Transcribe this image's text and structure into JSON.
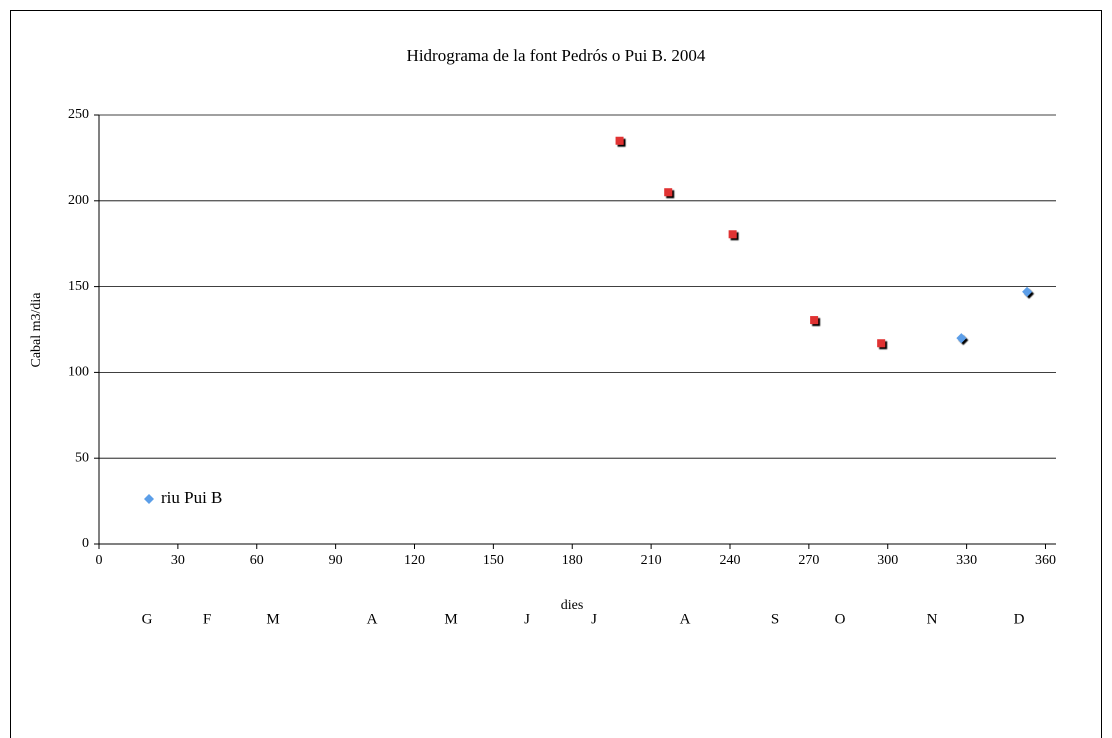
{
  "chart_data": {
    "type": "scatter",
    "title": "Hidrograma de la font Pedrós o Pui B. 2004",
    "x_label": "dies",
    "y_label": "Cabal m3/dia",
    "month_labels": [
      "G",
      "F",
      "M",
      "A",
      "M",
      "J",
      "J",
      "A",
      "S",
      "O",
      "N",
      "D"
    ],
    "series": [
      {
        "color": "#e03030",
        "marker": "square",
        "x": [
          198,
          216.5,
          241,
          272,
          297.5
        ],
        "values": [
          235,
          205,
          180.5,
          130.5,
          117
        ]
      },
      {
        "name": "riu Pui B",
        "color": "#5b9ee8",
        "marker": "diamond",
        "x": [
          328,
          353
        ],
        "values": [
          120,
          147
        ]
      }
    ],
    "xlim": [
      0,
      364
    ],
    "xticks": [
      0,
      30,
      60,
      90,
      120,
      150,
      180,
      210,
      240,
      270,
      300,
      330,
      360
    ],
    "ylim": [
      0,
      250
    ],
    "yticks": [
      0,
      50,
      100,
      150,
      200,
      250
    ],
    "grid": true,
    "legend": "lower left"
  }
}
